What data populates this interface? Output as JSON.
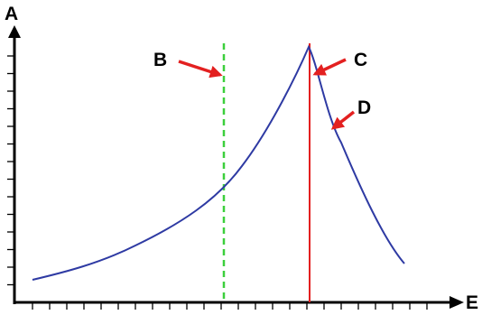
{
  "labels": {
    "y_axis": "A",
    "x_axis": "E",
    "dashed_line": "B",
    "peak_line": "C",
    "curve": "D"
  },
  "colors": {
    "axis": "#000000",
    "curve": "#2e3aa3",
    "dashed_line": "#3ccf3c",
    "peak_line": "#e32020",
    "arrows": "#e32020",
    "label_text": "#000000"
  },
  "icons": {
    "x_axis_arrowhead": "arrow-right-icon",
    "y_axis_arrowhead": "arrow-up-icon",
    "label_pointer": "red-arrow-icon"
  }
}
